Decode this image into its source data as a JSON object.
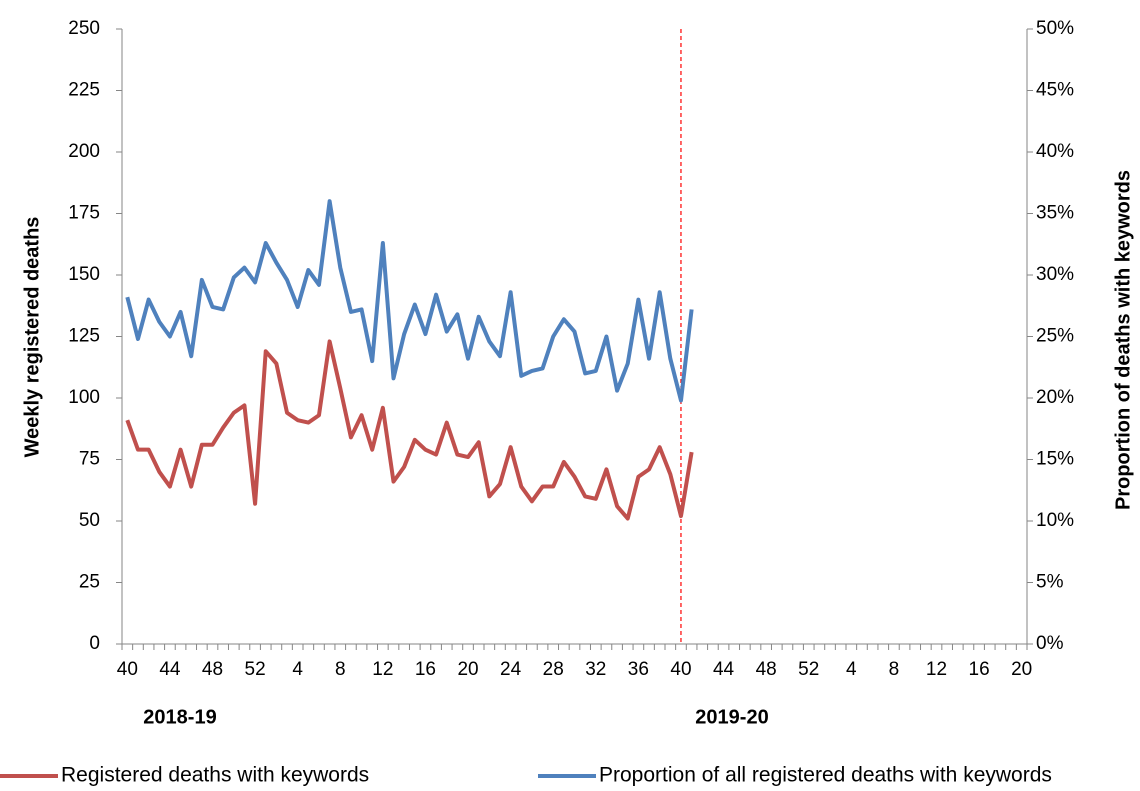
{
  "chart_data": {
    "type": "line",
    "y_label": "Weekly registered deaths",
    "y2_label": "Proportion of deaths with keywords",
    "annotations": [
      "2018-19",
      "2019-20"
    ],
    "categories": [
      "40",
      null,
      null,
      null,
      "44",
      null,
      null,
      null,
      "48",
      null,
      null,
      null,
      "52",
      null,
      null,
      null,
      "4",
      null,
      null,
      null,
      "8",
      null,
      null,
      null,
      "12",
      null,
      null,
      null,
      "16",
      null,
      null,
      null,
      "20",
      null,
      null,
      null,
      "24",
      null,
      null,
      null,
      "28",
      null,
      null,
      null,
      "32",
      null,
      null,
      null,
      "36",
      null,
      null,
      null,
      "40",
      null,
      null,
      null,
      "44",
      null,
      null,
      null,
      "48",
      null,
      null,
      null,
      "52",
      null,
      null,
      null,
      "4",
      null,
      null,
      null,
      "8",
      null,
      null,
      null,
      "12",
      null,
      null,
      null,
      "16",
      null,
      null,
      null,
      "20"
    ],
    "series": [
      {
        "name": "Registered deaths with keywords",
        "color": "#c0504d",
        "values": [
          91,
          79,
          79,
          70,
          64,
          79,
          64,
          81,
          81,
          88,
          94,
          97,
          57,
          119,
          114,
          94,
          91,
          90,
          93,
          123,
          104,
          84,
          93,
          79,
          96,
          66,
          72,
          83,
          79,
          77,
          90,
          77,
          76,
          82,
          60,
          65,
          80,
          64,
          58,
          64,
          64,
          74,
          68,
          60,
          59,
          71,
          56,
          51,
          68,
          71,
          80,
          69,
          52,
          78,
          null,
          null,
          null,
          null,
          null,
          null,
          null,
          null,
          null,
          null,
          null,
          null,
          null,
          null,
          null,
          null,
          null,
          null,
          null,
          null,
          null,
          null,
          null,
          null,
          null,
          null,
          null,
          null,
          null,
          null,
          null
        ]
      },
      {
        "name": "Proportion of all registered deaths with keywords",
        "color": "#4f81bd",
        "axis": "y2",
        "values": [
          28.2,
          24.8,
          28,
          26.2,
          25,
          27,
          23.4,
          29.6,
          27.4,
          27.2,
          29.8,
          30.6,
          29.4,
          32.6,
          31,
          29.6,
          27.4,
          30.4,
          29.2,
          36,
          30.6,
          27,
          27.2,
          23,
          32.6,
          21.6,
          25.2,
          27.6,
          25.2,
          28.4,
          25.4,
          26.8,
          23.2,
          26.6,
          24.6,
          23.4,
          28.6,
          21.8,
          22.2,
          22.4,
          25,
          26.4,
          25.4,
          22,
          22.2,
          25,
          20.6,
          22.8,
          28,
          23.2,
          28.6,
          23.2,
          19.8,
          27.2,
          null,
          null,
          null,
          null,
          null,
          null,
          null,
          null,
          null,
          null,
          null,
          null,
          null,
          null,
          null,
          null,
          null,
          null,
          null,
          null,
          null,
          null,
          null,
          null,
          null,
          null,
          null,
          null,
          null,
          null,
          null
        ]
      }
    ],
    "ylim": [
      0,
      250
    ],
    "yticks": [
      0,
      25,
      50,
      75,
      100,
      125,
      150,
      175,
      200,
      225,
      250
    ],
    "y2lim": [
      0,
      50
    ],
    "y2ticks": [
      {
        "value": 0,
        "label": "0%"
      },
      {
        "value": 5,
        "label": "5%"
      },
      {
        "value": 10,
        "label": "10%"
      },
      {
        "value": 15,
        "label": "15%"
      },
      {
        "value": 20,
        "label": "20%"
      },
      {
        "value": 25,
        "label": "25%"
      },
      {
        "value": 30,
        "label": "30%"
      },
      {
        "value": 35,
        "label": "35%"
      },
      {
        "value": 40,
        "label": "40%"
      },
      {
        "value": 45,
        "label": "45%"
      },
      {
        "value": 50,
        "label": "50%"
      }
    ],
    "reference_line": {
      "category_index": 52,
      "color": "#ff0000"
    },
    "grid": false,
    "legend": "bottom"
  }
}
